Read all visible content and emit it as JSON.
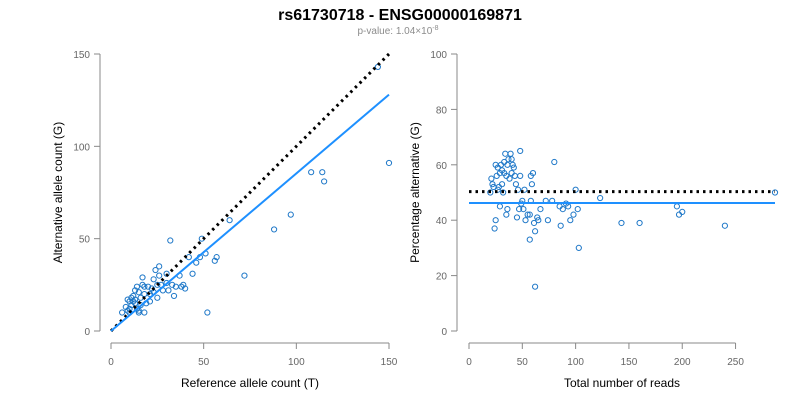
{
  "title": "rs61730718 - ENSG00000169871",
  "subtitle": {
    "text": "p-value: 1.04×10",
    "exponent": "-8"
  },
  "colors": {
    "points": "#1f78c8",
    "fit_line": "#1e90ff",
    "reference_line": "#000000",
    "axes": "#888888"
  },
  "chart_data": [
    {
      "type": "scatter",
      "xlabel": "Reference allele count (T)",
      "ylabel": "Alternative allele count (G)",
      "xlim": [
        0,
        150
      ],
      "ylim": [
        0,
        150
      ],
      "xticks": [
        0,
        50,
        100,
        150
      ],
      "yticks": [
        0,
        50,
        100,
        150
      ],
      "grid": false,
      "points": [
        [
          144,
          143
        ],
        [
          150,
          91
        ],
        [
          115,
          81
        ],
        [
          114,
          86
        ],
        [
          108,
          86
        ],
        [
          97,
          63
        ],
        [
          88,
          55
        ],
        [
          72,
          30
        ],
        [
          64,
          60
        ],
        [
          57,
          40
        ],
        [
          56,
          38
        ],
        [
          52,
          10
        ],
        [
          51,
          42
        ],
        [
          49,
          50
        ],
        [
          48,
          40
        ],
        [
          46,
          37
        ],
        [
          44,
          31
        ],
        [
          42,
          40
        ],
        [
          40,
          23
        ],
        [
          39,
          25
        ],
        [
          38,
          24
        ],
        [
          37,
          30
        ],
        [
          35,
          24
        ],
        [
          34,
          19
        ],
        [
          33,
          25
        ],
        [
          32,
          49
        ],
        [
          31,
          22
        ],
        [
          30,
          26
        ],
        [
          30,
          31
        ],
        [
          28,
          22
        ],
        [
          27,
          25
        ],
        [
          26,
          35
        ],
        [
          26,
          30
        ],
        [
          25,
          18
        ],
        [
          25,
          25
        ],
        [
          24,
          33
        ],
        [
          23,
          28
        ],
        [
          23,
          21
        ],
        [
          22,
          23
        ],
        [
          21,
          16
        ],
        [
          21,
          20
        ],
        [
          20,
          24
        ],
        [
          19,
          15
        ],
        [
          18,
          10
        ],
        [
          18,
          24
        ],
        [
          18,
          20
        ],
        [
          17,
          25
        ],
        [
          17,
          29
        ],
        [
          16,
          14
        ],
        [
          16,
          18
        ],
        [
          15,
          11
        ],
        [
          15,
          21
        ],
        [
          15,
          10
        ],
        [
          14,
          24
        ],
        [
          14,
          12
        ],
        [
          13,
          17
        ],
        [
          13,
          22
        ],
        [
          13,
          15
        ],
        [
          12,
          19
        ],
        [
          12,
          16
        ],
        [
          11,
          18
        ],
        [
          11,
          14
        ],
        [
          10,
          16
        ],
        [
          10,
          12
        ],
        [
          10,
          10
        ],
        [
          9,
          17
        ],
        [
          9,
          11
        ],
        [
          8,
          13
        ],
        [
          6,
          10
        ]
      ],
      "fit_line": [
        [
          0,
          0
        ],
        [
          150,
          128
        ]
      ],
      "reference_line": [
        [
          0,
          0
        ],
        [
          150,
          150
        ]
      ]
    },
    {
      "type": "scatter",
      "xlabel": "Total number of reads",
      "ylabel": "Percentage alternative (G)",
      "xlim": [
        0,
        287
      ],
      "ylim": [
        0,
        100
      ],
      "xticks": [
        0,
        50,
        100,
        150,
        200,
        250
      ],
      "yticks": [
        0,
        20,
        40,
        60,
        80,
        100
      ],
      "grid": false,
      "points": [
        [
          287,
          50
        ],
        [
          240,
          38
        ],
        [
          200,
          43
        ],
        [
          197,
          42
        ],
        [
          195,
          45
        ],
        [
          160,
          39
        ],
        [
          143,
          39
        ],
        [
          123,
          48
        ],
        [
          103,
          30
        ],
        [
          102,
          44
        ],
        [
          100,
          51
        ],
        [
          98,
          42
        ],
        [
          95,
          40
        ],
        [
          93,
          45
        ],
        [
          91,
          46
        ],
        [
          88,
          44
        ],
        [
          86,
          38
        ],
        [
          85,
          45
        ],
        [
          80,
          61
        ],
        [
          78,
          47
        ],
        [
          74,
          40
        ],
        [
          72,
          47
        ],
        [
          67,
          44
        ],
        [
          65,
          40
        ],
        [
          64,
          41
        ],
        [
          62,
          16
        ],
        [
          62,
          36
        ],
        [
          61,
          39
        ],
        [
          60,
          57
        ],
        [
          59,
          53
        ],
        [
          58,
          56
        ],
        [
          58,
          47
        ],
        [
          57,
          33
        ],
        [
          57,
          42
        ],
        [
          55,
          42
        ],
        [
          53,
          40
        ],
        [
          52,
          51
        ],
        [
          51,
          44
        ],
        [
          50,
          47
        ],
        [
          49,
          46
        ],
        [
          48,
          65
        ],
        [
          48,
          56
        ],
        [
          47,
          44
        ],
        [
          46,
          51
        ],
        [
          45,
          41
        ],
        [
          44,
          53
        ],
        [
          43,
          56
        ],
        [
          42,
          59
        ],
        [
          41,
          60
        ],
        [
          40,
          62
        ],
        [
          40,
          57
        ],
        [
          39,
          64
        ],
        [
          38,
          55
        ],
        [
          37,
          62
        ],
        [
          36,
          60
        ],
        [
          36,
          44
        ],
        [
          35,
          56
        ],
        [
          35,
          42
        ],
        [
          34,
          64
        ],
        [
          33,
          57
        ],
        [
          33,
          61
        ],
        [
          32,
          50
        ],
        [
          31,
          53
        ],
        [
          31,
          58
        ],
        [
          30,
          60
        ],
        [
          29,
          45
        ],
        [
          29,
          57
        ],
        [
          28,
          52
        ],
        [
          27,
          59
        ],
        [
          27,
          51
        ],
        [
          26,
          56
        ],
        [
          25,
          60
        ],
        [
          25,
          40
        ],
        [
          24,
          37
        ],
        [
          23,
          52
        ],
        [
          22,
          53
        ],
        [
          21,
          55
        ],
        [
          20,
          50
        ]
      ],
      "fit_line": [
        [
          0,
          46.2
        ],
        [
          287,
          46.2
        ]
      ],
      "reference_line": [
        [
          0,
          50.3
        ],
        [
          287,
          50.3
        ]
      ]
    }
  ]
}
